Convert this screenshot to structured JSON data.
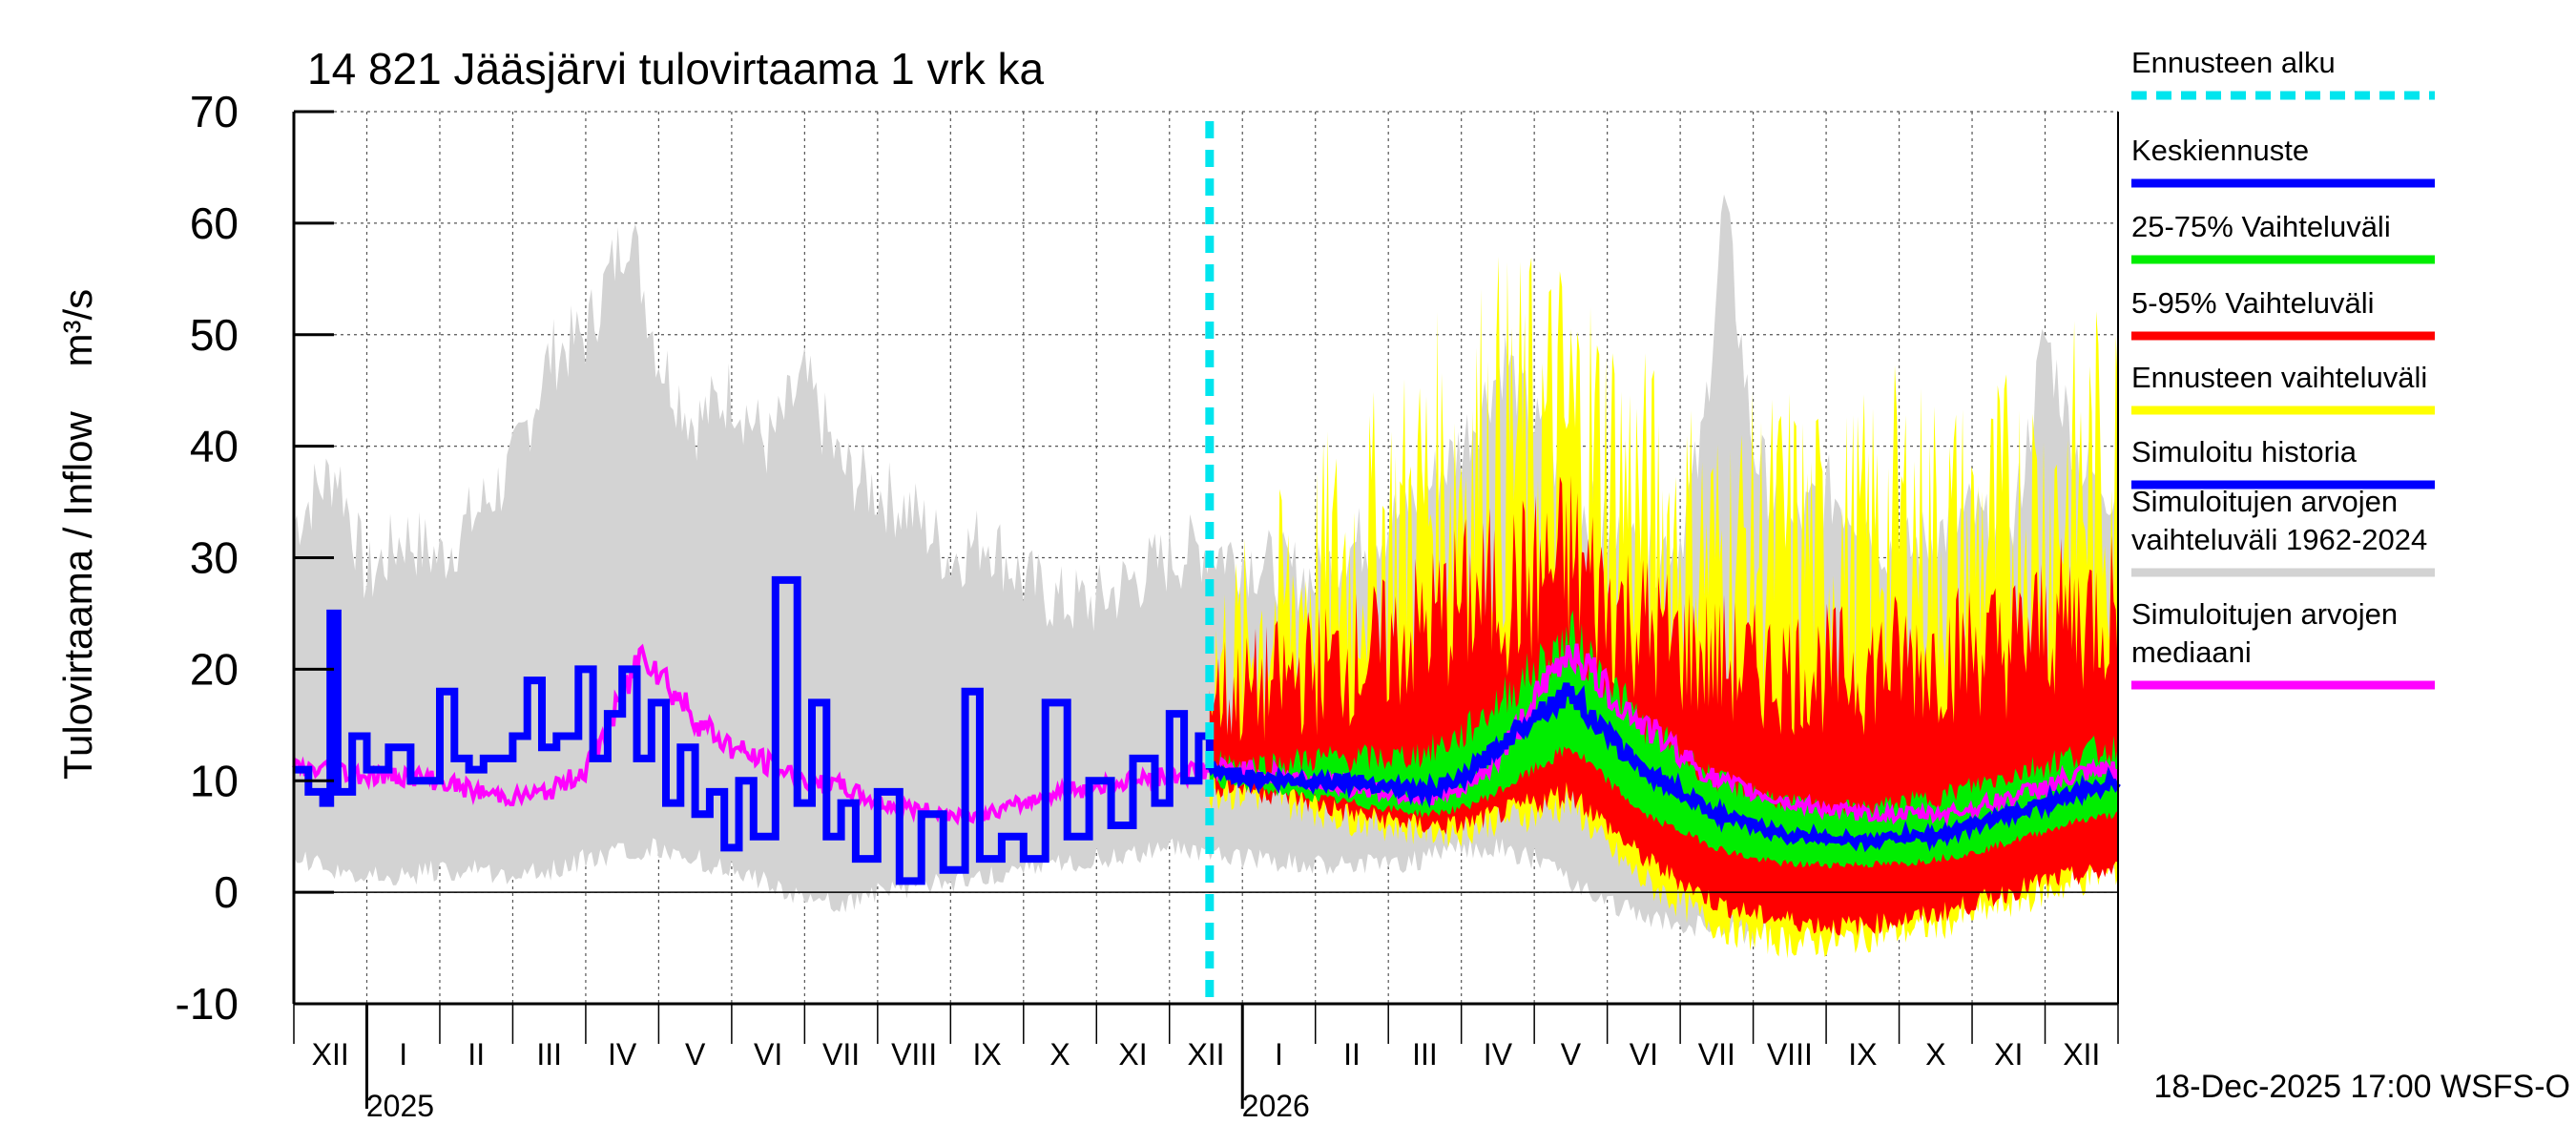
{
  "chart_data": {
    "type": "area",
    "title": "14 821 Jääsjärvi tulovirtaama 1 vrk ka",
    "ylabel": "Tulovirtaama / Inflow    m³/s",
    "xlabel": "",
    "ylim": [
      -10,
      70
    ],
    "yticks": [
      -10,
      0,
      10,
      20,
      30,
      40,
      50,
      60,
      70
    ],
    "grid": true,
    "x_unit": "month index from 1 Dec 2024",
    "xlim": [
      0,
      25
    ],
    "month_labels": [
      "XII",
      "I",
      "II",
      "III",
      "IV",
      "V",
      "VI",
      "VII",
      "VIII",
      "IX",
      "X",
      "XI",
      "XII",
      "I",
      "II",
      "III",
      "IV",
      "V",
      "VI",
      "VII",
      "VIII",
      "IX",
      "X",
      "XI",
      "XII"
    ],
    "year_labels": [
      {
        "label": "2025",
        "x": 1
      },
      {
        "label": "2026",
        "x": 13
      }
    ],
    "forecast_start": 12.55,
    "footer": "18-Dec-2025 17:00 WSFS-O",
    "legend": [
      {
        "key": "forecast_start",
        "label": "Ennusteen alku",
        "color": "#00e5ee",
        "dashed": true
      },
      {
        "key": "mean_forecast",
        "label": "Keskiennuste",
        "color": "#0000ff"
      },
      {
        "key": "p25_75",
        "label": "25-75% Vaihteluväli",
        "color": "#00ee00"
      },
      {
        "key": "p5_95",
        "label": "5-95% Vaihteluväli",
        "color": "#ff0000"
      },
      {
        "key": "forecast_range",
        "label": "Ennusteen vaihteluväli",
        "color": "#ffff00"
      },
      {
        "key": "simulated_history",
        "label": "Simuloitu historia",
        "color": "#0000ff"
      },
      {
        "key": "hist_range",
        "label": "Simuloitujen arvojen vaihteluväli 1962-2024",
        "lines": [
          "Simuloitujen arvojen",
          "vaihteluväli 1962-2024"
        ],
        "color": "#d3d3d3"
      },
      {
        "key": "hist_median",
        "label": "Simuloitujen arvojen mediaani",
        "lines": [
          "Simuloitujen arvojen",
          "mediaani"
        ],
        "color": "#ff00ff"
      }
    ],
    "series": {
      "hist_range_upper": {
        "x": [
          0,
          0.3,
          0.6,
          1,
          1.5,
          2,
          2.5,
          3,
          3.5,
          4,
          4.3,
          4.6,
          5,
          5.5,
          6,
          6.5,
          7,
          7.5,
          8,
          8.5,
          9,
          9.5,
          10,
          10.5,
          11,
          11.5,
          12,
          12.5,
          13,
          13.5,
          14,
          14.5,
          15,
          15.5,
          16,
          16.3,
          16.6,
          17,
          17.5,
          18,
          18.5,
          19,
          19.3,
          19.6,
          20,
          20.5,
          21,
          21.5,
          22,
          22.5,
          23,
          23.5,
          24,
          24.5,
          25
        ],
        "y": [
          33,
          36,
          38,
          28,
          32,
          30,
          34,
          38,
          48,
          50,
          55,
          60,
          48,
          42,
          45,
          40,
          46,
          38,
          36,
          34,
          30,
          32,
          28,
          26,
          26,
          28,
          30,
          31,
          30,
          29,
          28,
          31,
          33,
          36,
          40,
          44,
          48,
          42,
          36,
          32,
          30,
          32,
          40,
          62,
          40,
          32,
          36,
          34,
          30,
          32,
          34,
          30,
          50,
          38,
          36
        ]
      },
      "hist_range_lower": {
        "x": [
          0,
          0.5,
          1,
          1.5,
          2,
          2.5,
          3,
          3.5,
          4,
          4.5,
          5,
          5.5,
          6,
          6.5,
          7,
          7.5,
          8,
          8.5,
          9,
          9.5,
          10,
          10.5,
          11,
          11.5,
          12,
          12.5,
          13,
          13.5,
          14,
          14.5,
          15,
          15.5,
          16,
          16.5,
          17,
          17.5,
          18,
          18.5,
          19,
          19.5,
          20,
          20.5,
          21,
          21.5,
          22,
          22.5,
          23,
          23.5,
          24,
          24.5,
          25
        ],
        "y": [
          3,
          2,
          1.5,
          1.5,
          2,
          2,
          1.5,
          2,
          3,
          3.5,
          4,
          3,
          2,
          1,
          -1,
          -1,
          0,
          0.5,
          1,
          1.5,
          2,
          2.5,
          3,
          3.5,
          4,
          3.5,
          3,
          2.8,
          2.5,
          2.5,
          2.5,
          3,
          4,
          4,
          3,
          1,
          -1,
          -2,
          -3,
          -3,
          -4,
          -3,
          -2,
          -1,
          0,
          1,
          1.5,
          2,
          2.5,
          2.5,
          3
        ]
      },
      "hist_median": {
        "x": [
          0,
          0.5,
          1,
          1.5,
          2,
          2.5,
          3,
          3.5,
          4,
          4.4,
          4.8,
          5.2,
          5.6,
          6,
          6.5,
          7,
          7.5,
          8,
          8.5,
          9,
          9.5,
          10,
          10.5,
          11,
          11.5,
          12,
          12.5,
          13,
          13.5,
          14,
          14.5,
          15,
          15.5,
          16,
          16.5,
          17,
          17.5,
          18,
          18.5,
          19,
          19.5,
          20,
          20.5,
          21,
          21.5,
          22,
          22.5,
          23,
          23.5,
          24,
          24.5,
          25
        ],
        "y": [
          11,
          11,
          10.5,
          10.5,
          10,
          9,
          8.5,
          9,
          11,
          16,
          22,
          18,
          15,
          13,
          11.5,
          10,
          9.5,
          8,
          7.5,
          7,
          7,
          8,
          9,
          9.5,
          10,
          10.5,
          11,
          11,
          10.5,
          10,
          9.5,
          9,
          8.5,
          9,
          12,
          17,
          22,
          18,
          15,
          12.5,
          10,
          9,
          8,
          7.5,
          7,
          7,
          7,
          7.5,
          8.5,
          9.5,
          10.5,
          11
        ]
      },
      "simulated_history": {
        "x": [
          0,
          0.2,
          0.4,
          0.5,
          0.6,
          0.8,
          1,
          1.3,
          1.6,
          2,
          2.2,
          2.4,
          2.6,
          3,
          3.2,
          3.4,
          3.6,
          3.9,
          4.1,
          4.3,
          4.5,
          4.7,
          4.9,
          5.1,
          5.3,
          5.5,
          5.7,
          5.9,
          6.1,
          6.3,
          6.6,
          6.9,
          7.1,
          7.3,
          7.5,
          7.7,
          8,
          8.3,
          8.6,
          8.9,
          9.2,
          9.4,
          9.7,
          10,
          10.3,
          10.6,
          10.9,
          11.2,
          11.5,
          11.8,
          12.0,
          12.2,
          12.4,
          12.55
        ],
        "y": [
          11,
          9,
          8,
          25,
          9,
          14,
          11,
          13,
          10,
          18,
          12,
          11,
          12,
          14,
          19,
          13,
          14,
          20,
          12,
          16,
          20,
          12,
          17,
          8,
          13,
          7,
          9,
          4,
          10,
          5,
          28,
          8,
          17,
          5,
          8,
          3,
          9,
          1,
          7,
          2,
          18,
          3,
          5,
          3,
          17,
          5,
          10,
          6,
          12,
          8,
          16,
          10,
          14,
          11
        ]
      },
      "mean_forecast": {
        "x": [
          12.55,
          13,
          13.5,
          14,
          14.5,
          15,
          15.5,
          16,
          16.5,
          17,
          17.5,
          18,
          18.5,
          19,
          19.5,
          20,
          20.5,
          21,
          21.5,
          22,
          22.5,
          23,
          23.5,
          24,
          24.5,
          25
        ],
        "y": [
          11,
          10.5,
          10,
          10,
          10,
          9.5,
          9,
          10,
          13,
          16,
          18,
          14,
          11,
          9,
          7,
          6,
          5,
          5,
          4.5,
          5,
          5,
          6,
          7,
          8,
          9,
          10
        ]
      },
      "p25_75": {
        "x": [
          12.55,
          13,
          13.5,
          14,
          14.5,
          15,
          15.5,
          16,
          16.5,
          17,
          17.5,
          18,
          18.5,
          19,
          19.5,
          20,
          20.5,
          21,
          21.5,
          22,
          22.5,
          23,
          23.5,
          24,
          24.5,
          25
        ],
        "upper": [
          12,
          11.5,
          11.5,
          12,
          12,
          12,
          12.5,
          14,
          17,
          20,
          23,
          19,
          15,
          12.5,
          10,
          9,
          8,
          7.5,
          7.5,
          8,
          8.5,
          9.5,
          10.5,
          11.5,
          12.5,
          13
        ],
        "lower": [
          10,
          9.5,
          9,
          8.5,
          8,
          7.5,
          7,
          7.5,
          9,
          11,
          13,
          10,
          7,
          5.5,
          4,
          3,
          2.5,
          2.5,
          2.5,
          2.5,
          3,
          3.5,
          4.5,
          5.5,
          6.5,
          7
        ]
      },
      "p5_95": {
        "x": [
          12.55,
          13,
          13.5,
          14,
          14.5,
          15,
          15.5,
          16,
          16.5,
          17,
          17.5,
          18,
          18.5,
          19,
          19.5,
          20,
          20.5,
          21,
          21.5,
          22,
          22.5,
          23,
          23.5,
          24,
          24.5,
          25
        ],
        "upper": [
          18,
          18,
          19,
          20,
          21,
          22,
          24,
          26,
          27,
          28,
          30,
          26,
          24,
          22,
          21,
          20,
          20,
          20,
          20,
          21,
          21,
          22,
          22,
          24,
          25,
          26
        ],
        "lower": [
          10,
          9.5,
          9,
          8,
          7,
          6.5,
          6,
          6,
          7,
          8,
          9,
          6,
          3,
          1,
          -1,
          -2,
          -2.5,
          -3,
          -3,
          -2.5,
          -2,
          -1,
          0,
          1,
          1.5,
          2
        ]
      },
      "forecast_range": {
        "x": [
          12.55,
          13,
          13.5,
          14,
          14.5,
          15,
          15.5,
          16,
          16.5,
          17,
          17.5,
          18,
          18.5,
          19,
          19.5,
          20,
          20.5,
          21,
          21.5,
          22,
          22.5,
          23,
          23.5,
          24,
          24.5,
          25
        ],
        "upper": [
          20,
          22,
          25,
          28,
          30,
          32,
          35,
          38,
          40,
          40,
          41,
          38,
          34,
          32,
          30,
          31,
          32,
          30,
          31,
          33,
          32,
          31,
          33,
          34,
          36,
          38
        ],
        "lower": [
          9.5,
          9,
          8.5,
          7.5,
          6.5,
          6,
          5.5,
          5.5,
          6.5,
          7,
          8,
          4,
          1,
          -1,
          -3,
          -4,
          -4.5,
          -4.5,
          -4,
          -3.5,
          -3,
          -2,
          -1,
          0,
          1,
          2
        ]
      }
    }
  }
}
